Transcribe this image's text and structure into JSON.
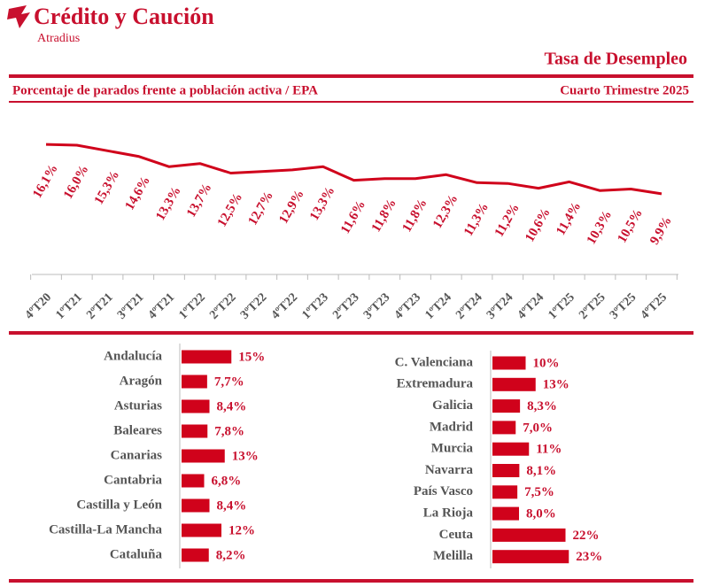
{
  "header": {
    "brand": "Crédito y Caución",
    "sub_brand": "Atradius",
    "title": "Tasa de Desempleo",
    "subtitle": "Porcentaje de parados frente a población activa / EPA",
    "period": "Cuarto Trimestre 2025"
  },
  "chart_data": [
    {
      "type": "line",
      "color": "#d0021b",
      "categories": [
        "4ºT20",
        "1ºT21",
        "2ºT21",
        "3ºT21",
        "4ºT21",
        "1ºT22",
        "2ºT22",
        "3ºT22",
        "4ºT22",
        "1ºT23",
        "2ºT23",
        "3ºT23",
        "4ºT23",
        "1ºT24",
        "2ºT24",
        "3ºT24",
        "4ºT24",
        "1ºT25",
        "2ºT25",
        "3ºT25",
        "4ºT25"
      ],
      "values": [
        16.1,
        16.0,
        15.3,
        14.6,
        13.3,
        13.7,
        12.5,
        12.7,
        12.9,
        13.3,
        11.6,
        11.8,
        11.8,
        12.3,
        11.3,
        11.2,
        10.6,
        11.4,
        10.3,
        10.5,
        9.9
      ],
      "value_labels": [
        "16,1%",
        "16,0%",
        "15,3%",
        "14,6%",
        "13,3%",
        "13,7%",
        "12,5%",
        "12,7%",
        "12,9%",
        "13,3%",
        "11,6%",
        "11,8%",
        "11,8%",
        "12,3%",
        "11,3%",
        "11,2%",
        "10,6%",
        "11,4%",
        "10,3%",
        "10,5%",
        "9,9%"
      ]
    },
    {
      "type": "bar",
      "color": "#d0021b",
      "categories": [
        "Andalucía",
        "Aragón",
        "Asturias",
        "Baleares",
        "Canarias",
        "Cantabria",
        "Castilla y León",
        "Castilla-La Mancha",
        "Cataluña"
      ],
      "values": [
        15,
        7.7,
        8.4,
        7.8,
        13,
        6.8,
        8.4,
        12,
        8.2
      ],
      "value_labels": [
        "15%",
        "7,7%",
        "8,4%",
        "7,8%",
        "13%",
        "6,8%",
        "8,4%",
        "12%",
        "8,2%"
      ]
    },
    {
      "type": "bar",
      "color": "#d0021b",
      "categories": [
        "C. Valenciana",
        "Extremadura",
        "Galicia",
        "Madrid",
        "Murcia",
        "Navarra",
        "País Vasco",
        "La Rioja",
        "Ceuta",
        "Melilla"
      ],
      "values": [
        10,
        13,
        8.3,
        7.0,
        11,
        8.1,
        7.5,
        8.0,
        22,
        23
      ],
      "value_labels": [
        "10%",
        "13%",
        "8,3%",
        "7,0%",
        "11%",
        "8,1%",
        "7,5%",
        "8,0%",
        "22%",
        "23%"
      ]
    }
  ]
}
